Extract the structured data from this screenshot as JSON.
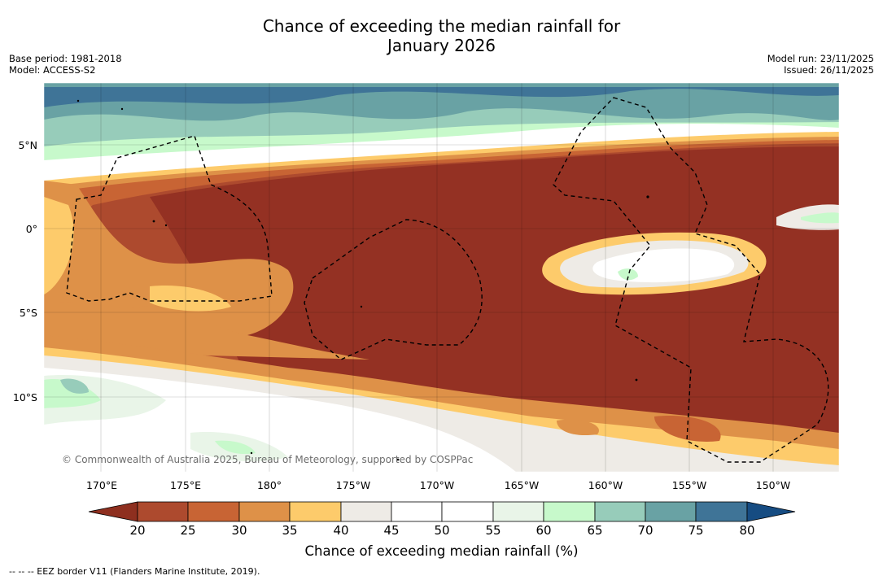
{
  "title_line1": "Chance of exceeding the median rainfall for",
  "title_line2": "January 2026",
  "meta": {
    "base_period": "Base period: 1981-2018",
    "model": "Model: ACCESS-S2",
    "model_run": "Model run: 23/11/2025",
    "issued": "Issued: 26/11/2025"
  },
  "lat_labels": [
    "5°N",
    "0°",
    "5°S",
    "10°S"
  ],
  "lon_labels": [
    "170°E",
    "175°E",
    "180°",
    "175°W",
    "170°W",
    "165°W",
    "160°W",
    "155°W",
    "150°W"
  ],
  "copyright": "© Commonwealth of Australia 2025, Bureau of Meteorology, supported by COSPPac",
  "colorbar": {
    "label": "Chance of exceeding median rainfall (%)",
    "ticks": [
      "20",
      "25",
      "30",
      "35",
      "40",
      "45",
      "50",
      "55",
      "60",
      "65",
      "70",
      "75",
      "80"
    ],
    "colors": {
      "below20": "#8e2f1f",
      "c20_25": "#ad4a2e",
      "c25_30": "#c86434",
      "c30_35": "#de9148",
      "c35_40": "#fdcb6b",
      "c40_45": "#eeebe6",
      "c45_50": "#ffffff",
      "c50_55": "#ffffff",
      "c55_60": "#e9f5e8",
      "c60_65": "#c7f9cb",
      "c65_70": "#97ccba",
      "c70_75": "#69a2a4",
      "c75_80": "#3f7497",
      "above80": "#164c82",
      "core": "#943123"
    }
  },
  "footnote": "--  --  -- EEZ border V11 (Flanders Marine Institute, 2019)."
}
